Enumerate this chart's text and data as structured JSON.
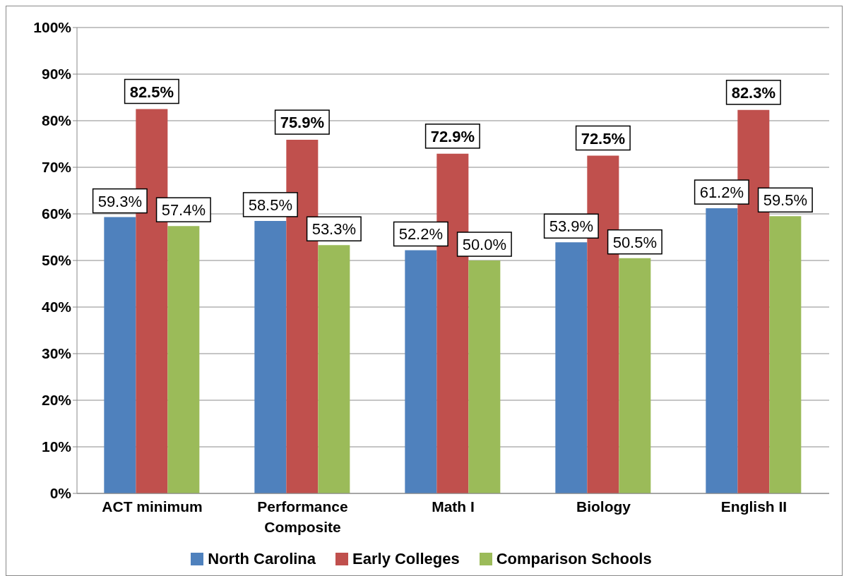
{
  "chart_data": {
    "type": "bar",
    "categories": [
      "ACT minimum",
      "Performance Composite",
      "Math I",
      "Biology",
      "English II"
    ],
    "series": [
      {
        "name": "North Carolina",
        "color": "#4f81bd",
        "values": [
          59.3,
          58.5,
          52.2,
          53.9,
          61.2
        ],
        "value_labels": [
          "59.3%",
          "58.5%",
          "52.2%",
          "53.9%",
          "61.2%"
        ]
      },
      {
        "name": "Early Colleges",
        "color": "#c0504d",
        "values": [
          82.5,
          75.9,
          72.9,
          72.5,
          82.3
        ],
        "value_labels": [
          "82.5%",
          "75.9%",
          "72.9%",
          "72.5%",
          "82.3%"
        ]
      },
      {
        "name": "Comparison Schools",
        "color": "#9bbb59",
        "values": [
          57.4,
          53.3,
          50.0,
          50.5,
          59.5
        ],
        "value_labels": [
          "57.4%",
          "53.3%",
          "50.0%",
          "50.5%",
          "59.5%"
        ]
      }
    ],
    "ylim": [
      0,
      100
    ],
    "yticks": [
      {
        "value": 0,
        "label": "0%"
      },
      {
        "value": 10,
        "label": "10%"
      },
      {
        "value": 20,
        "label": "20%"
      },
      {
        "value": 30,
        "label": "30%"
      },
      {
        "value": 40,
        "label": "40%"
      },
      {
        "value": 50,
        "label": "50%"
      },
      {
        "value": 60,
        "label": "60%"
      },
      {
        "value": 70,
        "label": "70%"
      },
      {
        "value": 80,
        "label": "80%"
      },
      {
        "value": 90,
        "label": "90%"
      },
      {
        "value": 100,
        "label": "100%"
      }
    ],
    "grid": "y",
    "legend": "bottom"
  }
}
